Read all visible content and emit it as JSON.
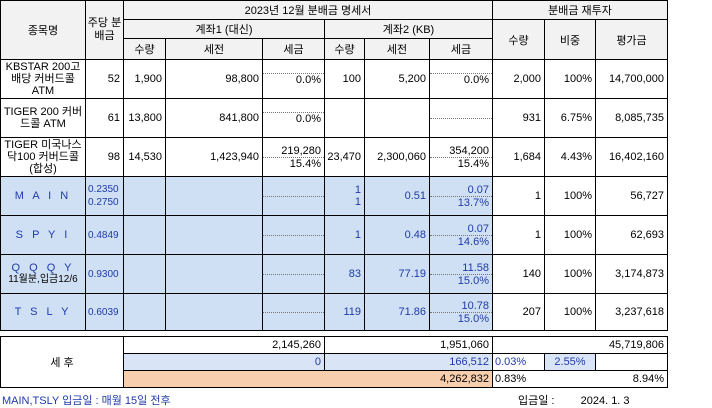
{
  "header": {
    "stock_name": "종목명",
    "dividend_per_share": "주당 분배금",
    "title": "2023년 12월 분배금 명세서",
    "reinvest_title": "분배금 재투자",
    "account1": "계좌1 (대신)",
    "account2": "계좌2 (KB)",
    "qty": "수량",
    "pretax": "세전",
    "tax": "세금",
    "reinvest_qty": "수량",
    "reinvest_weight": "비중",
    "reinvest_value": "평가금"
  },
  "rows": [
    {
      "name": "KBSTAR 200고배당 커버드콜ATM",
      "div": "52",
      "q1": "1,900",
      "t1": "98,800",
      "x1_top": "",
      "x1_bot": "0.0%",
      "q2": "100",
      "t2": "5,200",
      "x2_top": "",
      "x2_bot": "0.0%",
      "rq": "2,000",
      "rw": "100%",
      "rv": "14,700,000"
    },
    {
      "name": "TIGER 200 커버드콜 ATM",
      "div": "61",
      "q1": "13,800",
      "t1": "841,800",
      "x1_top": "",
      "x1_bot": "0.0%",
      "q2": "",
      "t2": "",
      "x2_top": "",
      "x2_bot": "",
      "rq": "931",
      "rw": "6.75%",
      "rv": "8,085,735"
    },
    {
      "name": "TIGER 미국나스닥100 커버드콜(합성)",
      "div": "98",
      "q1": "14,530",
      "t1": "1,423,940",
      "x1_top": "219,280",
      "x1_bot": "15.4%",
      "q2": "23,470",
      "t2": "2,300,060",
      "x2_top": "354,200",
      "x2_bot": "15.4%",
      "rq": "1,684",
      "rw": "4.43%",
      "rv": "16,402,160"
    }
  ],
  "blue_rows": [
    {
      "name": "M A I N",
      "rate_top": "0.2350",
      "rate_bot": "0.2750",
      "q2_top": "1",
      "q2_bot": "1",
      "t2": "0.51",
      "x2_top": "0.07",
      "x2_bot": "13.7%",
      "rq": "1",
      "rw": "100%",
      "rv": "56,727"
    },
    {
      "name": "S P Y I",
      "rate_top": "0.4849",
      "rate_bot": "",
      "q2_top": "1",
      "q2_bot": "",
      "t2": "0.48",
      "x2_top": "0.07",
      "x2_bot": "14.6%",
      "rq": "1",
      "rw": "100%",
      "rv": "62,693"
    },
    {
      "name": "Q Q Q Y",
      "name_sub": "11월분,입금12/6",
      "rate_top": "0.9300",
      "rate_bot": "",
      "q2_top": "83",
      "q2_bot": "",
      "t2": "77.19",
      "x2_top": "11.58",
      "x2_bot": "15.0%",
      "rq": "140",
      "rw": "100%",
      "rv": "3,174,873"
    },
    {
      "name": "T S L Y",
      "rate_top": "0.6039",
      "rate_bot": "",
      "q2_top": "119",
      "q2_bot": "",
      "t2": "71.86",
      "x2_top": "10.78",
      "x2_bot": "15.0%",
      "rq": "207",
      "rw": "100%",
      "rv": "3,237,618"
    }
  ],
  "summary": {
    "label": "세 후",
    "a1_total": "2,145,260",
    "a2_total": "1,951,060",
    "reinvest_total": "45,719,806",
    "foreign_a1": "0",
    "foreign_a2": "166,512",
    "foreign_pct": "0.03%",
    "foreign_weight": "2.55%",
    "grand_total": "4,262,832",
    "grand_pct": "0.83%",
    "grand_yield": "8.94%"
  },
  "footer": {
    "note": "MAIN,TSLY 입금일 : 매월 15일 전후",
    "paydate_label": "입금일 :",
    "paydate_value": "2024. 1. 3"
  }
}
